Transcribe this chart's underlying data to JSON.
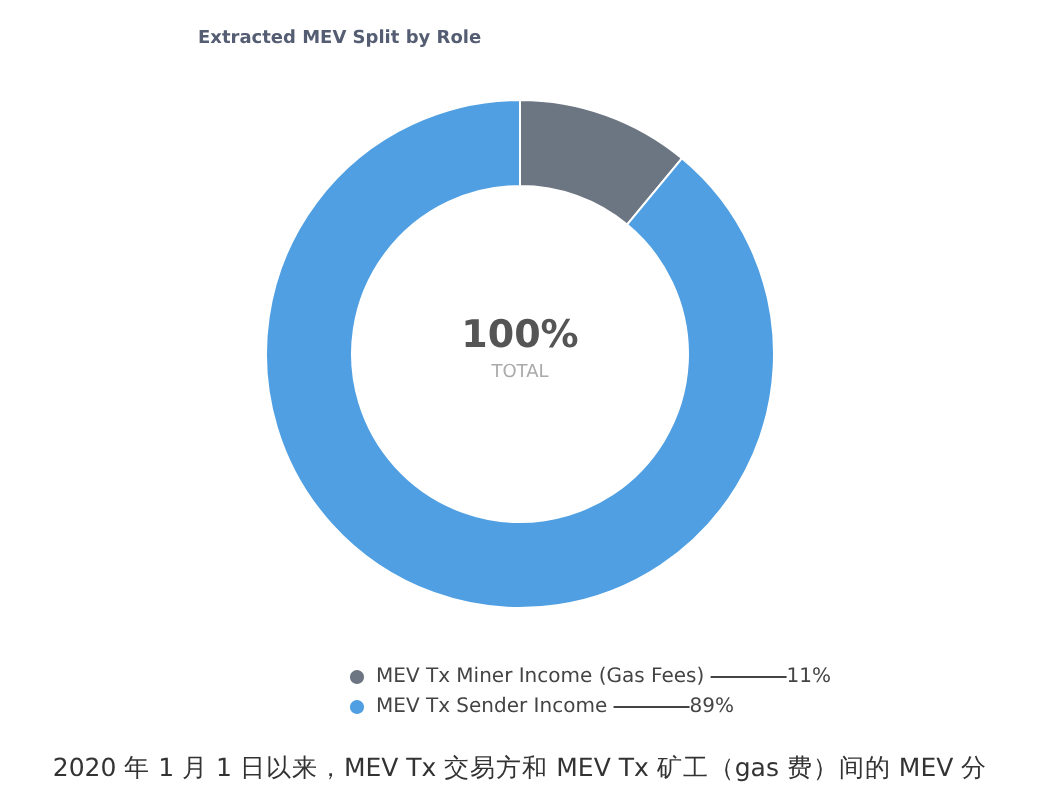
{
  "chart_data": {
    "type": "donut",
    "title": "Extracted MEV Split by Role",
    "categories": [
      "MEV Tx Miner Income (Gas Fees)",
      "MEV Tx Sender Income"
    ],
    "values": [
      11,
      89
    ],
    "colors": [
      "#6c7682",
      "#4f9fe2"
    ],
    "value_labels": [
      "11%",
      "89%"
    ],
    "legend": "bottom",
    "annotations": [
      "100%",
      "TOTAL",
      "2020 年 1 月 1 日以来，MEV Tx 交易方和 MEV Tx 矿工（gas 费）间的 MEV 分"
    ]
  }
}
